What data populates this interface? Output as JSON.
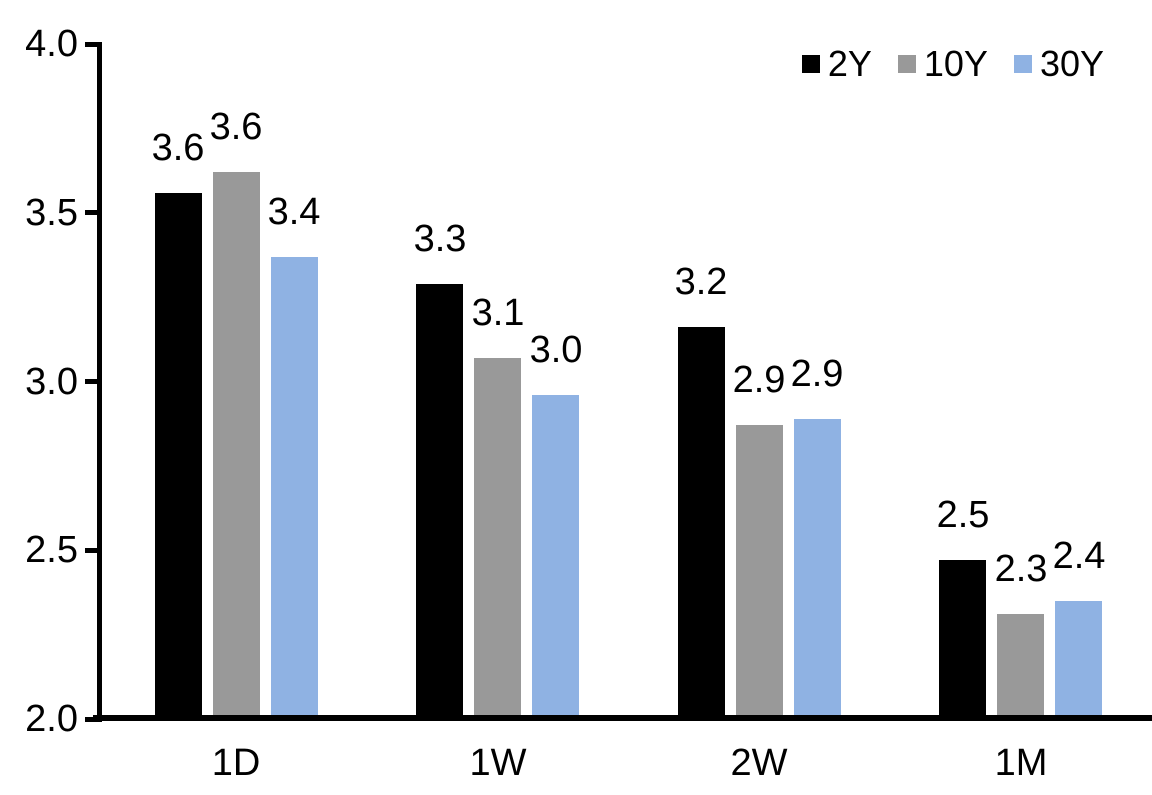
{
  "chart_data": {
    "type": "bar",
    "categories": [
      "1D",
      "1W",
      "2W",
      "1M"
    ],
    "series": [
      {
        "name": "2Y",
        "color": "#000000",
        "values": [
          3.56,
          3.29,
          3.16,
          2.47
        ],
        "labels": [
          "3.6",
          "3.3",
          "3.2",
          "2.5"
        ]
      },
      {
        "name": "10Y",
        "color": "#999999",
        "values": [
          3.62,
          3.07,
          2.87,
          2.31
        ],
        "labels": [
          "3.6",
          "3.1",
          "2.9",
          "2.3"
        ]
      },
      {
        "name": "30Y",
        "color": "#8FB2E3",
        "values": [
          3.37,
          2.96,
          2.89,
          2.35
        ],
        "labels": [
          "3.4",
          "3.0",
          "2.9",
          "2.4"
        ]
      }
    ],
    "title": "",
    "xlabel": "",
    "ylabel": "",
    "ylim": [
      2.0,
      4.0
    ],
    "yticks": [
      4.0,
      3.5,
      3.0,
      2.5,
      2.0
    ],
    "ytick_labels": [
      "4.0",
      "3.5",
      "3.0",
      "2.5",
      "2.0"
    ],
    "data_labels_shown": true,
    "grid": false,
    "legend_position": "top-right",
    "colors": {
      "background": "#ffffff",
      "axis": "#000000",
      "text": "#000000"
    }
  }
}
